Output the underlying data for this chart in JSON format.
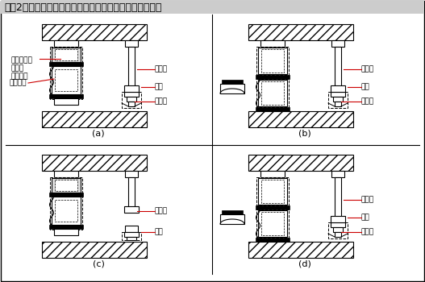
{
  "title": "『図2』キャップ付きストロークエンドブロックの使い方",
  "labels": {
    "stroke_end_block": "ストローク\nエンド\nブロック",
    "cap": "キャップ",
    "punch": "パンチ",
    "die": "ダイ",
    "bottom_dead": "下死点"
  },
  "sub_labels": [
    "(a)",
    "(b)",
    "(c)",
    "(d)"
  ],
  "annotation_color": "#cc0000"
}
